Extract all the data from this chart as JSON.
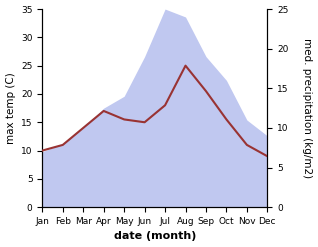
{
  "months": [
    "Jan",
    "Feb",
    "Mar",
    "Apr",
    "May",
    "Jun",
    "Jul",
    "Aug",
    "Sep",
    "Oct",
    "Nov",
    "Dec"
  ],
  "temp_max": [
    10.0,
    11.0,
    14.0,
    17.0,
    15.5,
    15.0,
    18.0,
    25.0,
    20.5,
    15.5,
    11.0,
    9.0
  ],
  "precip": [
    7.0,
    8.0,
    10.0,
    12.5,
    14.0,
    19.0,
    25.0,
    24.0,
    19.0,
    16.0,
    11.0,
    9.0
  ],
  "temp_color": "#993333",
  "precip_color": "#c0c8f0",
  "temp_ylim": [
    0,
    35
  ],
  "precip_ylim": [
    0,
    25
  ],
  "temp_yticks": [
    0,
    5,
    10,
    15,
    20,
    25,
    30,
    35
  ],
  "precip_yticks": [
    0,
    5,
    10,
    15,
    20,
    25
  ],
  "xlabel": "date (month)",
  "ylabel_left": "max temp (C)",
  "ylabel_right": "med. precipitation (kg/m2)",
  "bg_color": "#ffffff",
  "label_fontsize": 7.5,
  "tick_fontsize": 6.5,
  "xlabel_fontsize": 8
}
